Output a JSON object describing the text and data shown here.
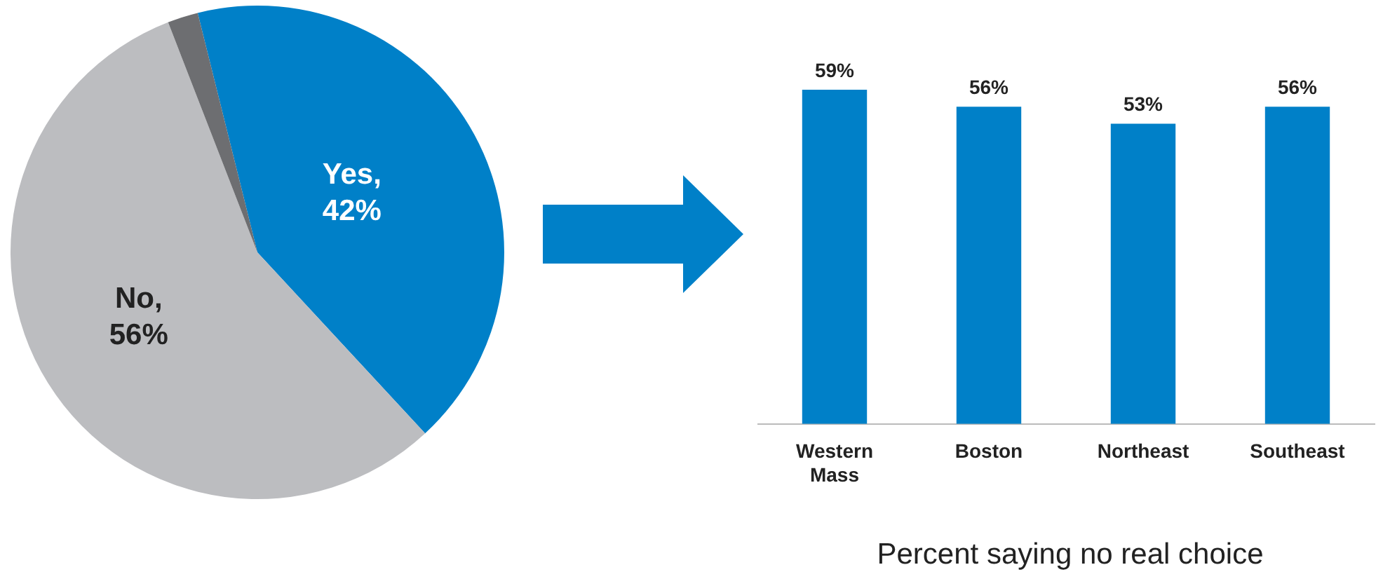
{
  "chart_data": [
    {
      "type": "pie",
      "categories": [
        "Yes",
        "No",
        null
      ],
      "values": [
        42,
        56,
        2
      ],
      "colors": [
        "#0080c8",
        "#bcbdc0",
        "#6d6e71"
      ],
      "value_labels": [
        "42%",
        "56%",
        null
      ],
      "legend": false,
      "annotations": [
        ",",
        ","
      ]
    },
    {
      "type": "bar",
      "categories": [
        "Western Mass",
        "Boston",
        "Northeast",
        "Southeast"
      ],
      "values": [
        59,
        56,
        53,
        56
      ],
      "color": "#0080c8",
      "value_labels": [
        "59%",
        "56%",
        "53%",
        "56%"
      ],
      "tick_labels": "x",
      "grid": false,
      "legend": false,
      "annotations": [
        "Percent saying no real choice"
      ]
    }
  ]
}
